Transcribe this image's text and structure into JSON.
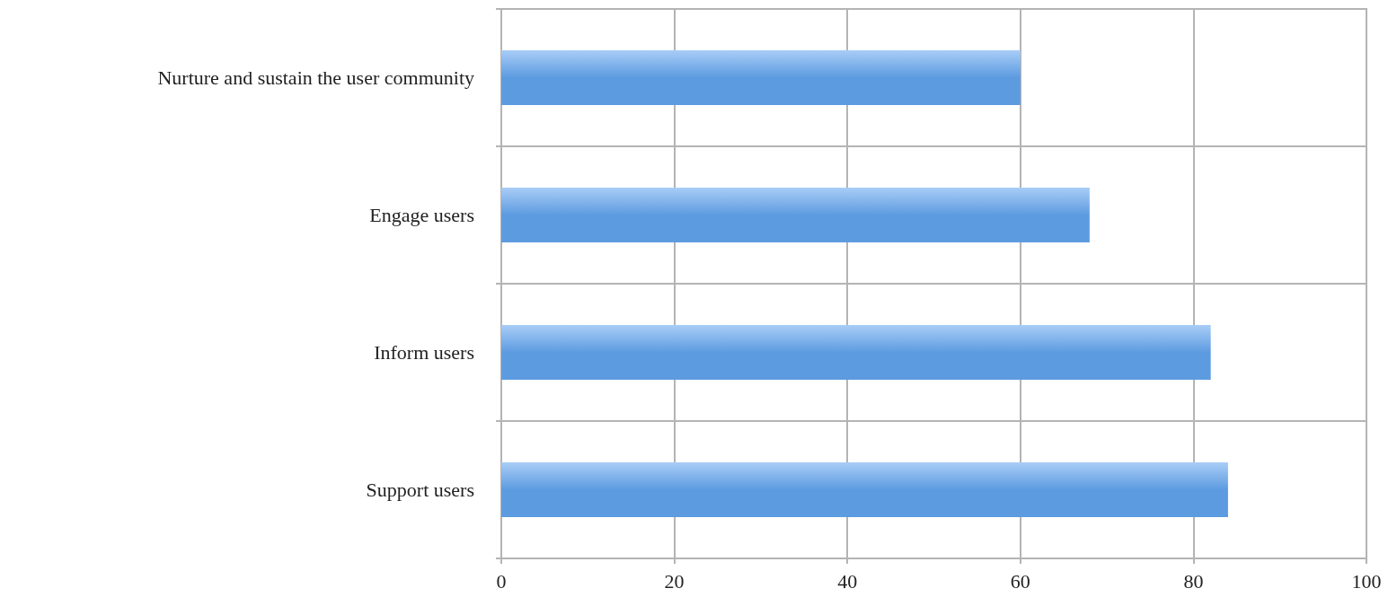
{
  "chart_data": {
    "type": "bar",
    "orientation": "horizontal",
    "categories": [
      "Nurture and sustain the user community",
      "Engage users",
      "Inform users",
      "Support users"
    ],
    "values": [
      60,
      68,
      82,
      84
    ],
    "color": "#5d9be0",
    "xlim": [
      0,
      100
    ],
    "xticks": [
      0,
      20,
      40,
      60,
      80,
      100
    ],
    "grid": true
  }
}
